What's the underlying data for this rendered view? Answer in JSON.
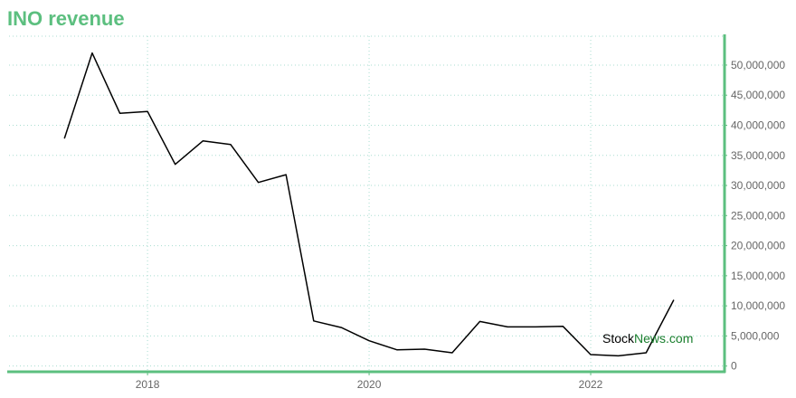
{
  "chart_data": {
    "type": "line",
    "title": "INO revenue",
    "xlabel": "",
    "ylabel": "",
    "x_ticks": [
      {
        "label": "2018",
        "year": 2018
      },
      {
        "label": "2020",
        "year": 2020
      },
      {
        "label": "2022",
        "year": 2022
      }
    ],
    "y_ticks": [
      "0",
      "5,000,000",
      "10,000,000",
      "15,000,000",
      "20,000,000",
      "25,000,000",
      "30,000,000",
      "35,000,000",
      "40,000,000",
      "45,000,000",
      "50,000,000"
    ],
    "xlim": [
      2016.75,
      2023.2
    ],
    "ylim": [
      -800000,
      54800000
    ],
    "grid": true,
    "series": [
      {
        "x": [
          2017.25,
          2017.5,
          2017.75,
          2018.0,
          2018.25,
          2018.5,
          2018.75,
          2019.0,
          2019.25,
          2019.5,
          2019.75,
          2020.0,
          2020.25,
          2020.5,
          2020.75,
          2021.0,
          2021.25,
          2021.5,
          2021.75,
          2022.0,
          2022.25,
          2022.5,
          2022.75
        ],
        "y": [
          37800000,
          52000000,
          42000000,
          42300000,
          33500000,
          37400000,
          36800000,
          30500000,
          31800000,
          7500000,
          6400000,
          4200000,
          2700000,
          2800000,
          2200000,
          7400000,
          6500000,
          6500000,
          6600000,
          1900000,
          1700000,
          2200000,
          11000000
        ]
      }
    ],
    "line_color": "#000000",
    "axis_color": "#5cbf7f",
    "grid_color": "#a8ddd0"
  },
  "watermark": {
    "part1": "Stock",
    "part2": "News",
    "part3": ".com",
    "color1": "#000000",
    "color2": "#1a7f2e"
  }
}
